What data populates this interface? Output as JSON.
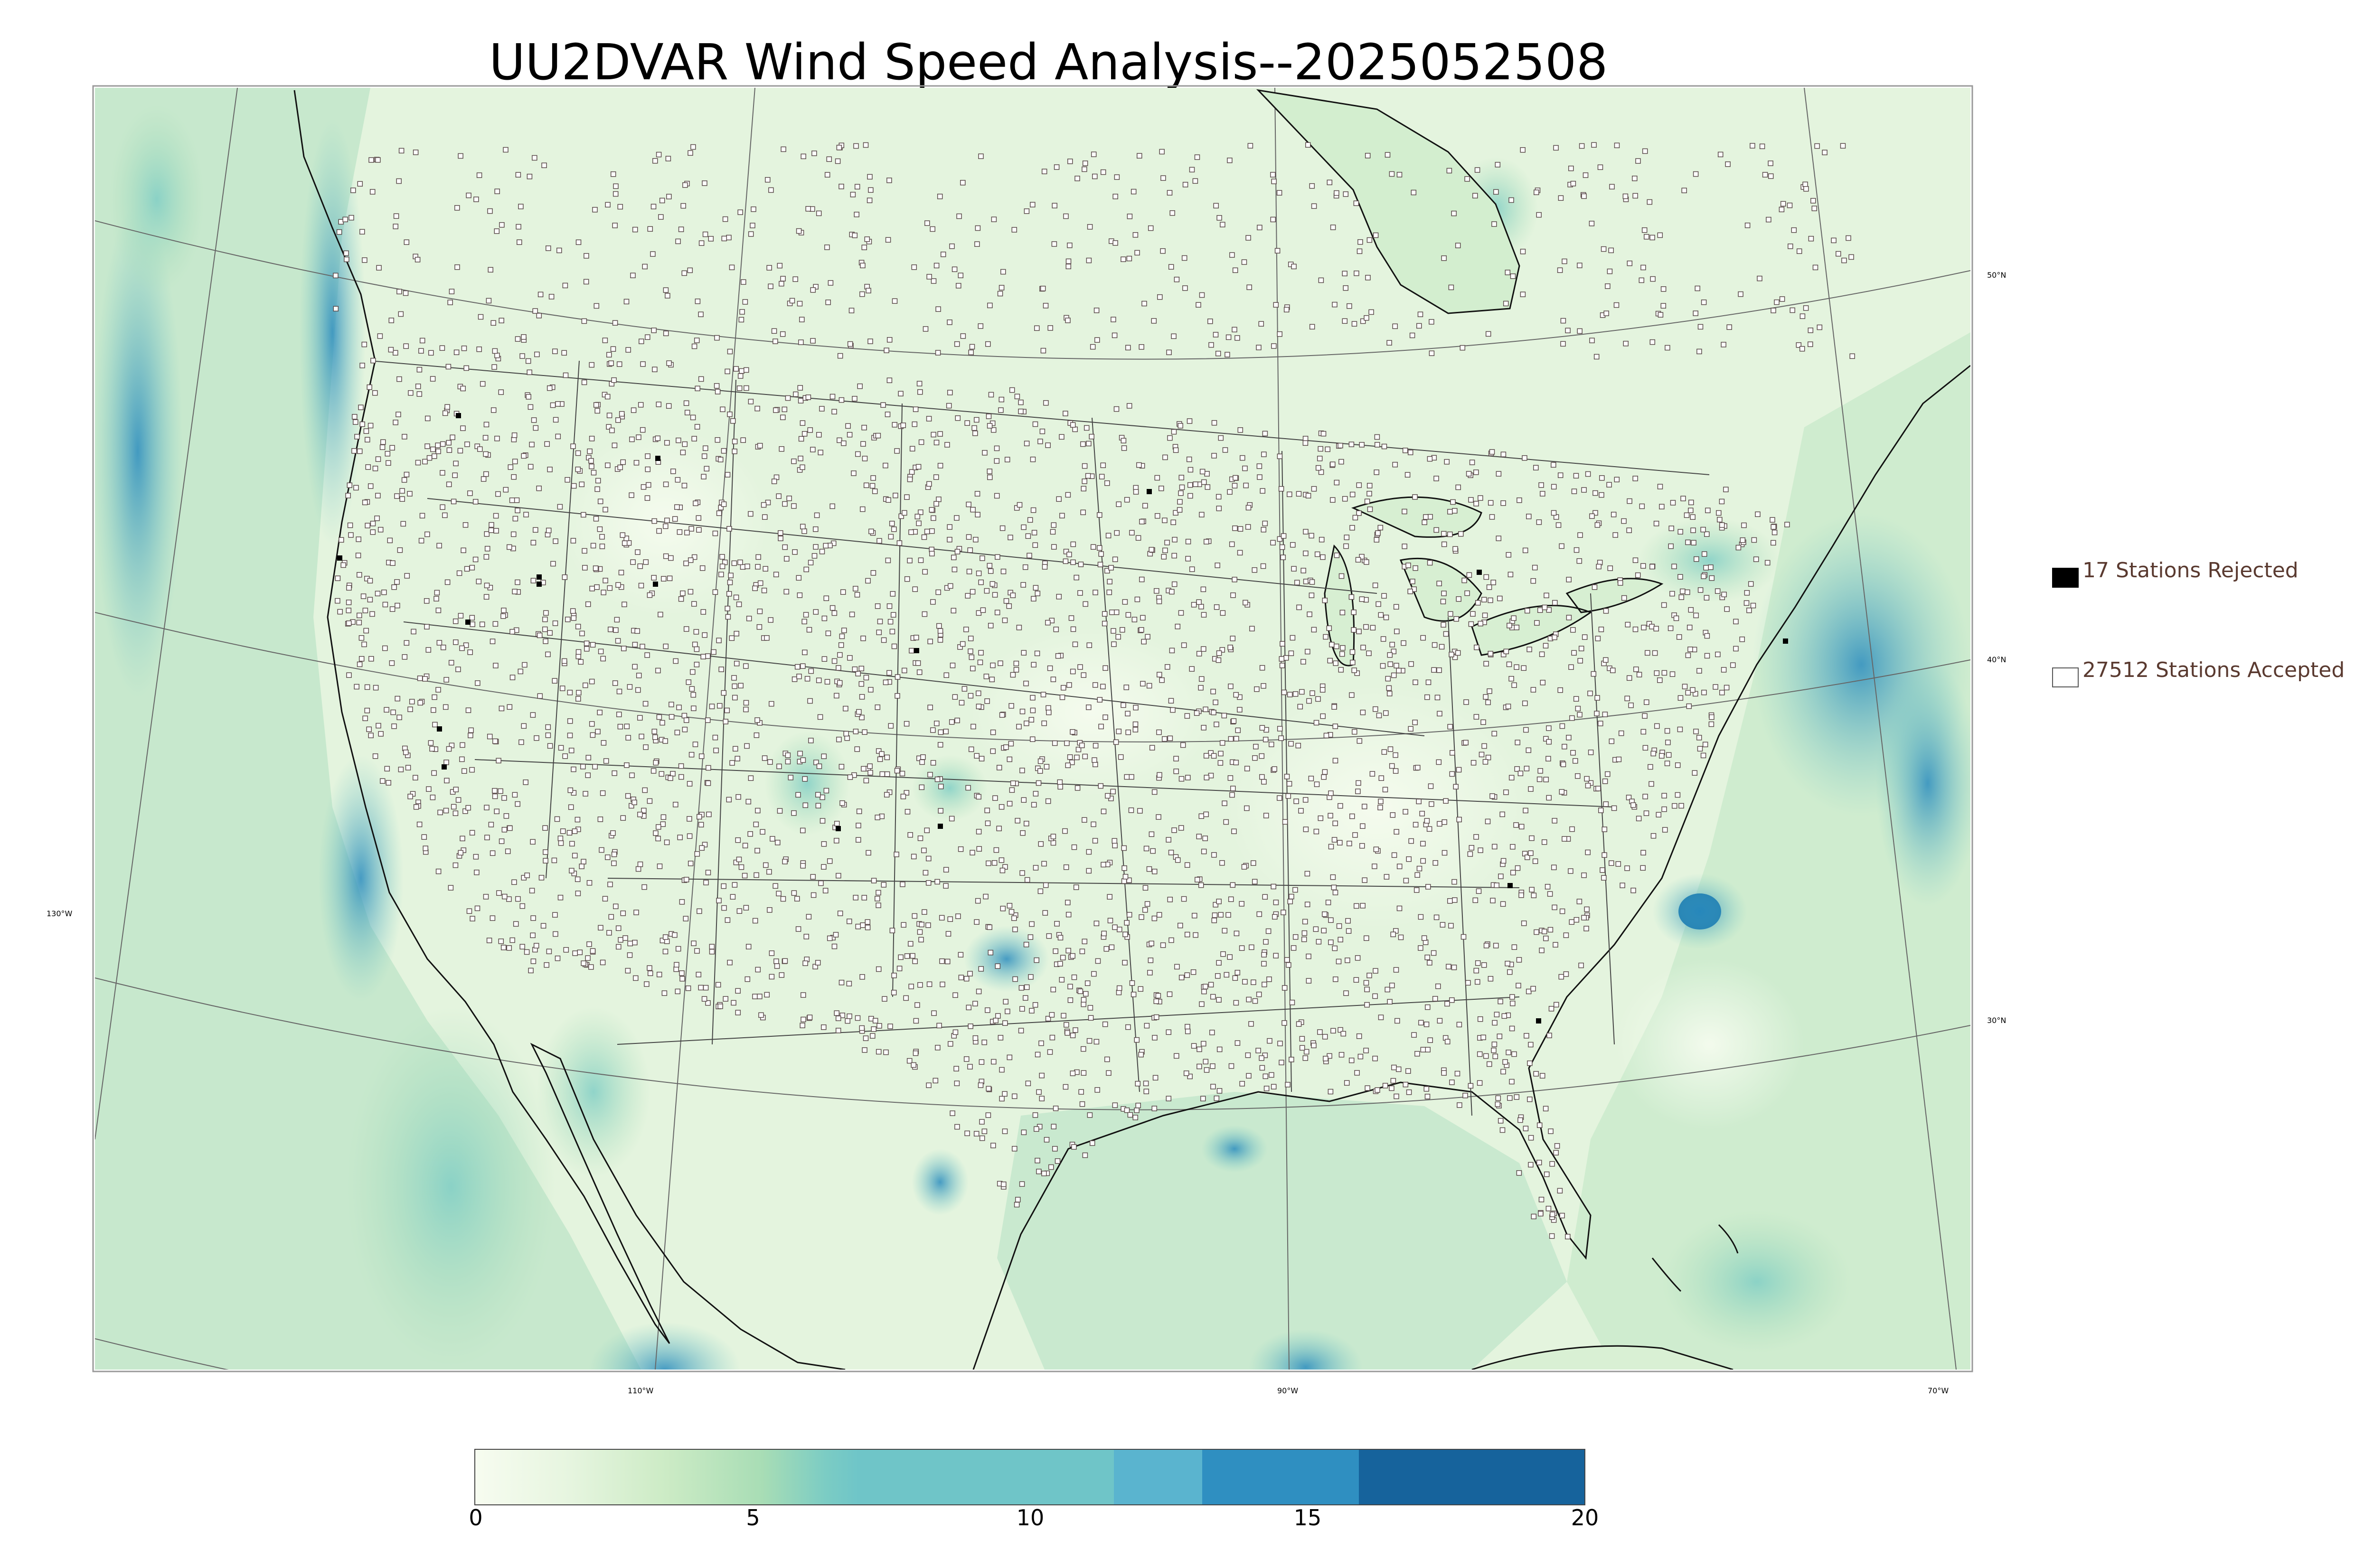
{
  "title": "UU2DVAR Wind Speed Analysis--2025052508",
  "legend": {
    "rejected": "17 Stations Rejected",
    "accepted": "27512 Stations Accepted"
  },
  "axes": {
    "lat_labels": [
      "50°N",
      "40°N",
      "30°N"
    ],
    "lon_labels": [
      "130°W",
      "110°W",
      "90°W",
      "70°W"
    ]
  },
  "colorbar": {
    "ticks": [
      "0",
      "5",
      "10",
      "15",
      "20"
    ],
    "colors": [
      "#f7fcf0",
      "#e0f3db",
      "#ccebc5",
      "#a8ddb5",
      "#7bccc4",
      "#4eb3d3",
      "#2b8cbe",
      "#0868ac"
    ]
  },
  "colors": {
    "land_base": "#e8f5e2",
    "ocean_base": "#cbe9d0",
    "station_outline": "#5a4a4a",
    "rejected_fill": "#000000"
  }
}
